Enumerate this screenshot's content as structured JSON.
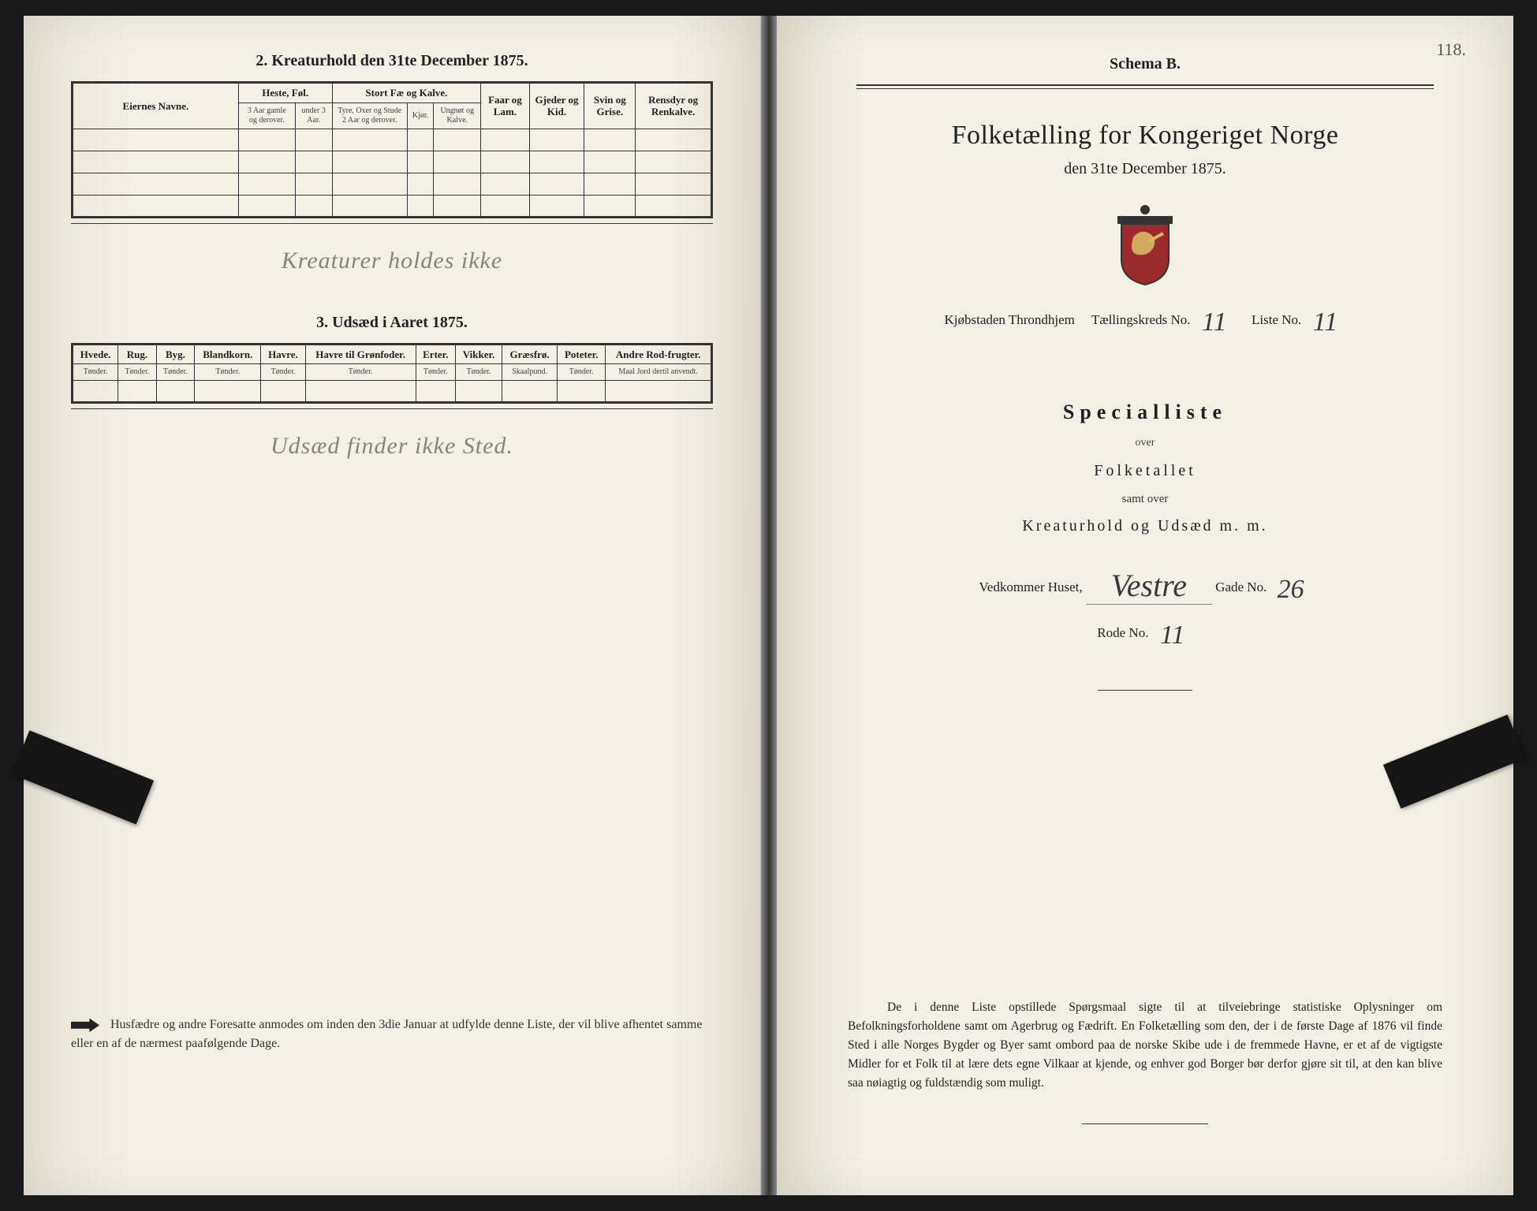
{
  "page_number_top_right": "118.",
  "left": {
    "section2_title": "2.  Kreaturhold den 31te December 1875.",
    "table2": {
      "owner_label": "Eiernes Navne.",
      "group_heste": "Heste, Føl.",
      "group_stort": "Stort Fæ og Kalve.",
      "col_faar": "Faar og Lam.",
      "col_gjeder": "Gjeder og Kid.",
      "col_svin": "Svin og Grise.",
      "col_rensdyr": "Rensdyr og Renkalve.",
      "sub_heste_1": "3 Aar gamle og derover.",
      "sub_heste_2": "under 3 Aar.",
      "sub_stort_1": "Tyre, Oxer og Stude 2 Aar og derover.",
      "sub_stort_2": "Kjør.",
      "sub_stort_3": "Ungnøt og Kalve."
    },
    "handwritten2": "Kreaturer holdes ikke",
    "section3_title": "3.  Udsæd i Aaret 1875.",
    "table3": {
      "cols": [
        "Hvede.",
        "Rug.",
        "Byg.",
        "Blandkorn.",
        "Havre.",
        "Havre til Grønfoder.",
        "Erter.",
        "Vikker.",
        "Græsfrø.",
        "Poteter.",
        "Andre Rod-frugter."
      ],
      "units": [
        "Tønder.",
        "Tønder.",
        "Tønder.",
        "Tønder.",
        "Tønder.",
        "Tønder.",
        "Tønder.",
        "Tønder.",
        "Skaalpund.",
        "Tønder.",
        "Maal Jord dertil anvendt."
      ]
    },
    "handwritten3": "Udsæd finder ikke Sted.",
    "footnote": "Husfædre og andre Foresatte anmodes om inden den 3die Januar at udfylde denne Liste, der vil blive afhentet samme eller en af de nærmest paafølgende Dage."
  },
  "right": {
    "schema": "Schema B.",
    "main_title": "Folketælling for Kongeriget Norge",
    "sub_title": "den 31te December 1875.",
    "line_kjobstad_prefix": "Kjøbstaden Throndhjem",
    "line_taellingskreds": "Tællingskreds No.",
    "taellingskreds_no": "11",
    "line_liste": "Liste No.",
    "liste_no": "11",
    "specialliste": "Specialliste",
    "over": "over",
    "folketallet": "Folketallet",
    "samt_over": "samt over",
    "kreatur_line": "Kreaturhold og Udsæd m. m.",
    "vedkommer": "Vedkommer Huset,",
    "street_hand": "Vestre",
    "gade_label": "Gade No.",
    "gade_no": "26",
    "rode_label": "Rode No.",
    "rode_no": "11",
    "footnote": "De i denne Liste opstillede Spørgsmaal sigte til at tilveiebringe statistiske Oplysninger om Befolkningsforholdene samt om Agerbrug og Fædrift.  En Folketælling som den, der i de første Dage af 1876 vil finde Sted i alle Norges Bygder og Byer samt ombord paa de norske Skibe ude i de fremmede Havne, er et af de vigtigste Midler for et Folk til at lære dets egne Vilkaar at kjende, og enhver god Borger bør derfor gjøre sit til, at den kan blive saa nøiagtig og fuldstændig som muligt."
  },
  "colors": {
    "paper": "#f4f0e6",
    "ink": "#222222",
    "faded_ink": "#8a8572",
    "border": "#333333"
  }
}
